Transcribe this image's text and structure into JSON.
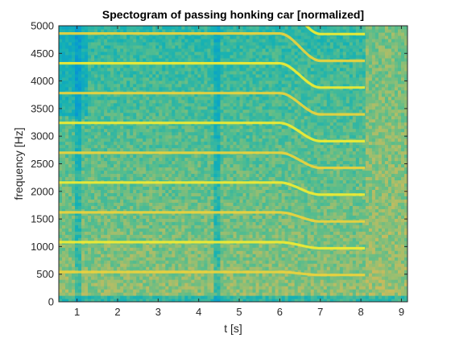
{
  "chart_data": {
    "type": "heatmap",
    "title": "Spectogram of passing honking car [normalized]",
    "xlabel": "t [s]",
    "ylabel": "frequency [Hz]",
    "xlim": [
      0.55,
      9.15
    ],
    "ylim": [
      0,
      5000
    ],
    "x_ticks": [
      1,
      2,
      3,
      4,
      5,
      6,
      7,
      8,
      9
    ],
    "y_ticks": [
      0,
      500,
      1000,
      1500,
      2000,
      2500,
      3000,
      3500,
      4000,
      4500,
      5000
    ],
    "grid": false,
    "colormap": "parula",
    "colors": {
      "low": "#1fa8c8",
      "mid": "#8fc43a",
      "high": "#f8d93a"
    },
    "harmonics": {
      "fundamental_hz_before": 540,
      "fundamental_hz_after": 485,
      "transition_start_s": 6.0,
      "transition_end_s": 7.0,
      "signal_end_s": 8.1
    },
    "transients_s": [
      1.0,
      4.45
    ]
  }
}
